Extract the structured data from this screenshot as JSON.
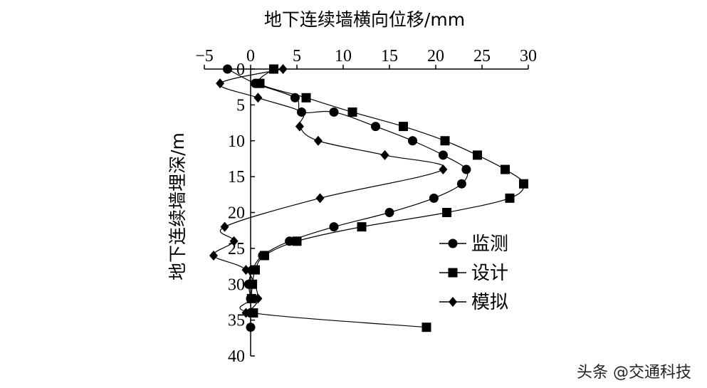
{
  "chart_data": {
    "type": "line",
    "xlabel": "地下连续墙横向位移/mm",
    "ylabel": "地下连续墙埋深/m",
    "xlim": [
      -5,
      30
    ],
    "ylim": [
      0,
      40
    ],
    "y_inverted": true,
    "x_axis_position": "top",
    "x_ticks": [
      "−5",
      "0",
      "5",
      "10",
      "15",
      "20",
      "25",
      "30"
    ],
    "y_ticks": [
      "0",
      "5",
      "10",
      "15",
      "20",
      "25",
      "30",
      "35",
      "40"
    ],
    "grid": false,
    "legend_position": "right",
    "series": [
      {
        "name": "监测",
        "marker": "circle",
        "points": [
          [
            -2.5,
            0
          ],
          [
            0.5,
            2
          ],
          [
            4.8,
            4
          ],
          [
            5.5,
            6
          ],
          [
            9,
            6
          ],
          [
            13.5,
            8
          ],
          [
            17.5,
            10
          ],
          [
            20.8,
            12
          ],
          [
            23.3,
            14
          ],
          [
            22.8,
            16
          ],
          [
            19.8,
            18
          ],
          [
            15,
            20
          ],
          [
            9,
            22
          ],
          [
            4.2,
            24
          ],
          [
            1.3,
            26
          ],
          [
            0.2,
            28
          ],
          [
            -0.2,
            30
          ],
          [
            0,
            32
          ],
          [
            0,
            34
          ],
          [
            0,
            36
          ]
        ]
      },
      {
        "name": "设计",
        "marker": "square",
        "points": [
          [
            2.5,
            0
          ],
          [
            1,
            2
          ],
          [
            6,
            4
          ],
          [
            11,
            6
          ],
          [
            16.5,
            8
          ],
          [
            21,
            10
          ],
          [
            24.5,
            12
          ],
          [
            27.5,
            14
          ],
          [
            29.5,
            16
          ],
          [
            28,
            18
          ],
          [
            21.2,
            20
          ],
          [
            12,
            22
          ],
          [
            5,
            24
          ],
          [
            1.5,
            26
          ],
          [
            0.5,
            28
          ],
          [
            0.2,
            30
          ],
          [
            0.1,
            32
          ],
          [
            0.3,
            34
          ],
          [
            19,
            36
          ]
        ]
      },
      {
        "name": "模拟",
        "marker": "diamond",
        "points": [
          [
            3.5,
            0
          ],
          [
            -3.3,
            2
          ],
          [
            0.8,
            4
          ],
          [
            5.5,
            6
          ],
          [
            5.3,
            8
          ],
          [
            7.3,
            10
          ],
          [
            14.5,
            12
          ],
          [
            20.8,
            14
          ],
          [
            7.5,
            18
          ],
          [
            -2.8,
            22
          ],
          [
            -1.8,
            24
          ],
          [
            -4,
            26
          ],
          [
            -0.5,
            28
          ],
          [
            0.8,
            32
          ],
          [
            -0.5,
            34
          ]
        ]
      }
    ]
  },
  "watermark": "头条 @交通科技"
}
